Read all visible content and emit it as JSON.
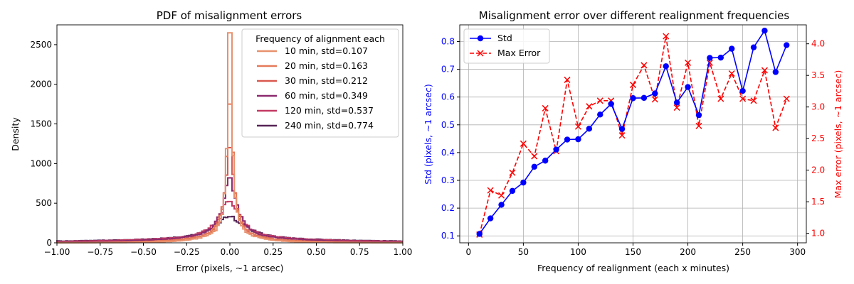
{
  "chart_data": [
    {
      "type": "histogram",
      "title": "PDF of misalignment errors",
      "xlabel": "Error (pixels, ~1 arcsec)",
      "ylabel": "Density",
      "xlim": [
        -1.0,
        1.0
      ],
      "ylim": [
        0,
        2750
      ],
      "xticks": [
        -1.0,
        -0.75,
        -0.5,
        -0.25,
        0.0,
        0.25,
        0.5,
        0.75,
        1.0
      ],
      "xtick_labels": [
        "−1.00",
        "−0.75",
        "−0.50",
        "−0.25",
        "0.00",
        "0.25",
        "0.50",
        "0.75",
        "1.00"
      ],
      "yticks": [
        0,
        500,
        1000,
        1500,
        2000,
        2500
      ],
      "grid": false,
      "legend": {
        "title": "Frequency of alignment each",
        "position": "top-right"
      },
      "series": [
        {
          "name": "10 min, std=0.107",
          "std": 0.107,
          "peak_density": 2650,
          "color": "#e8916d"
        },
        {
          "name": "20 min, std=0.163",
          "std": 0.163,
          "peak_density": 1750,
          "color": "#e57a5a"
        },
        {
          "name": "30 min, std=0.212",
          "std": 0.212,
          "peak_density": 1200,
          "color": "#d9584f"
        },
        {
          "name": "60 min, std=0.349",
          "std": 0.349,
          "peak_density": 820,
          "color": "#8c2a6e"
        },
        {
          "name": "120 min, std=0.537",
          "std": 0.537,
          "peak_density": 520,
          "color": "#c33b64"
        },
        {
          "name": "240 min, std=0.774",
          "std": 0.774,
          "peak_density": 330,
          "color": "#562457"
        }
      ]
    },
    {
      "type": "line",
      "title": "Misalignment error over different realignment frequencies",
      "xlabel": "Frequency of realignment (each x minutes)",
      "ylabel_left": "Std (pixels, ~1 arcsec)",
      "ylabel_right": "Max error (pixels, ~1 arcsec)",
      "xlim": [
        -8,
        308
      ],
      "ylim_left": [
        0.075,
        0.86
      ],
      "ylim_right": [
        0.85,
        4.3
      ],
      "xticks": [
        0,
        50,
        100,
        150,
        200,
        250,
        300
      ],
      "yticks_left": [
        0.1,
        0.2,
        0.3,
        0.4,
        0.5,
        0.6,
        0.7,
        0.8
      ],
      "yticks_right": [
        1.0,
        1.5,
        2.0,
        2.5,
        3.0,
        3.5,
        4.0
      ],
      "grid": true,
      "legend": {
        "position": "top-left"
      },
      "x": [
        10,
        20,
        30,
        40,
        50,
        60,
        70,
        80,
        90,
        100,
        110,
        120,
        130,
        140,
        150,
        160,
        170,
        180,
        190,
        200,
        210,
        220,
        230,
        240,
        250,
        260,
        270,
        280,
        290
      ],
      "series": [
        {
          "name": "Std",
          "axis": "left",
          "color": "#0000ff",
          "values": [
            0.107,
            0.163,
            0.212,
            0.262,
            0.292,
            0.349,
            0.371,
            0.411,
            0.447,
            0.448,
            0.486,
            0.537,
            0.575,
            0.485,
            0.596,
            0.597,
            0.613,
            0.711,
            0.58,
            0.636,
            0.535,
            0.741,
            0.742,
            0.774,
            0.622,
            0.779,
            0.839,
            0.69,
            0.787
          ]
        },
        {
          "name": "Max Error",
          "axis": "right",
          "color": "#ff0000",
          "values": [
            0.98,
            1.68,
            1.6,
            1.96,
            2.42,
            2.22,
            2.98,
            2.3,
            3.43,
            2.69,
            3.01,
            3.1,
            3.1,
            2.55,
            3.35,
            3.66,
            3.12,
            4.12,
            2.99,
            3.7,
            2.7,
            3.7,
            3.13,
            3.53,
            3.13,
            3.1,
            3.58,
            2.67,
            3.13
          ]
        }
      ]
    }
  ]
}
